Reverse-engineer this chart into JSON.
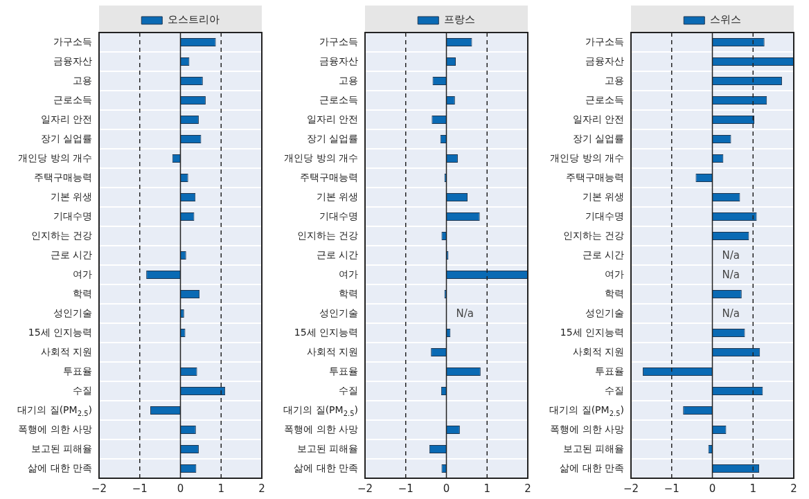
{
  "chart_data": [
    {
      "type": "bar",
      "orientation": "horizontal",
      "categories": [
        "가구소득",
        "금융자산",
        "고용",
        "근로소득",
        "일자리 안전",
        "장기 실업률",
        "개인당 방의 개수",
        "주택구매능력",
        "기본 위생",
        "기대수명",
        "인지하는 건강",
        "근로 시간",
        "여가",
        "학력",
        "성인기술",
        "15세 인지능력",
        "사회적 지원",
        "투표율",
        "수질",
        "대기의 질(PM$_{2.5}$)",
        "폭행에 의한 사망",
        "보고된 피해율",
        "삶에 대한 만족"
      ],
      "series": [
        {
          "name": "오스트리아",
          "color": "#0a6ab4",
          "values": [
            0.87,
            0.22,
            0.55,
            0.62,
            0.45,
            0.51,
            -0.2,
            0.19,
            0.37,
            0.34,
            null,
            0.14,
            -0.84,
            0.47,
            0.09,
            0.12,
            null,
            0.41,
            1.1,
            -0.74,
            0.38,
            0.45,
            0.39
          ]
        }
      ],
      "xlim": [
        -2,
        2
      ],
      "xticks": [
        -2,
        -1,
        0,
        1,
        2
      ],
      "grid": "y",
      "legend": "top",
      "ref_lines": [
        {
          "axis": "x",
          "value": -1,
          "color": "#222222",
          "line_style": "dashed"
        },
        {
          "axis": "x",
          "value": 1,
          "color": "#222222",
          "line_style": "dashed"
        }
      ]
    },
    {
      "type": "bar",
      "orientation": "horizontal",
      "categories": [
        "가구소득",
        "금융자산",
        "고용",
        "근로소득",
        "일자리 안전",
        "장기 실업률",
        "개인당 방의 개수",
        "주택구매능력",
        "기본 위생",
        "기대수명",
        "인지하는 건강",
        "근로 시간",
        "여가",
        "학력",
        "성인기술",
        "15세 인지능력",
        "사회적 지원",
        "투표율",
        "수질",
        "대기의 질(PM$_{2.5}$)",
        "폭행에 의한 사망",
        "보고된 피해율",
        "삶에 대한 만족"
      ],
      "series": [
        {
          "name": "프랑스",
          "color": "#0a6ab4",
          "values": [
            0.63,
            0.23,
            -0.34,
            0.21,
            -0.36,
            -0.15,
            0.28,
            -0.05,
            0.52,
            0.82,
            -0.12,
            0.05,
            2.0,
            -0.05,
            null,
            0.1,
            -0.38,
            0.84,
            -0.13,
            0,
            0.33,
            -0.42,
            -0.12
          ],
          "value_labels": [
            null,
            null,
            null,
            null,
            null,
            null,
            null,
            null,
            null,
            null,
            null,
            null,
            null,
            null,
            "N/a",
            null,
            null,
            null,
            null,
            null,
            null,
            null,
            null
          ]
        }
      ],
      "xlim": [
        -2,
        2
      ],
      "xticks": [
        -2,
        -1,
        0,
        1,
        2
      ],
      "grid": "y",
      "legend": "top",
      "ref_lines": [
        {
          "axis": "x",
          "value": -1,
          "color": "#222222",
          "line_style": "dashed"
        },
        {
          "axis": "x",
          "value": 1,
          "color": "#222222",
          "line_style": "dashed"
        }
      ]
    },
    {
      "type": "bar",
      "orientation": "horizontal",
      "categories": [
        "가구소득",
        "금융자산",
        "고용",
        "근로소득",
        "일자리 안전",
        "장기 실업률",
        "개인당 방의 개수",
        "주택구매능력",
        "기본 위생",
        "기대수명",
        "인지하는 건강",
        "근로 시간",
        "여가",
        "학력",
        "성인기술",
        "15세 인지능력",
        "사회적 지원",
        "투표율",
        "수질",
        "대기의 질(PM$_{2.5}$)",
        "폭행에 의한 사망",
        "보고된 피해율",
        "삶에 대한 만족"
      ],
      "series": [
        {
          "name": "스위스",
          "color": "#0a6ab4",
          "values": [
            1.28,
            2.0,
            1.71,
            1.34,
            1.03,
            0.46,
            0.27,
            -0.41,
            0.68,
            1.09,
            0.9,
            null,
            null,
            0.72,
            null,
            0.8,
            1.17,
            -1.71,
            1.24,
            -0.72,
            0.34,
            -0.1,
            1.15
          ],
          "value_labels": [
            null,
            null,
            null,
            null,
            null,
            null,
            null,
            null,
            null,
            null,
            null,
            "N/a",
            "N/a",
            null,
            "N/a",
            null,
            null,
            null,
            null,
            null,
            null,
            null,
            null
          ]
        }
      ],
      "xlim": [
        -2,
        2
      ],
      "xticks": [
        -2,
        -1,
        0,
        1,
        2
      ],
      "grid": "y",
      "legend": "top",
      "ref_lines": [
        {
          "axis": "x",
          "value": -1,
          "color": "#222222",
          "line_style": "dashed"
        },
        {
          "axis": "x",
          "value": 1,
          "color": "#222222",
          "line_style": "dashed"
        }
      ]
    }
  ]
}
